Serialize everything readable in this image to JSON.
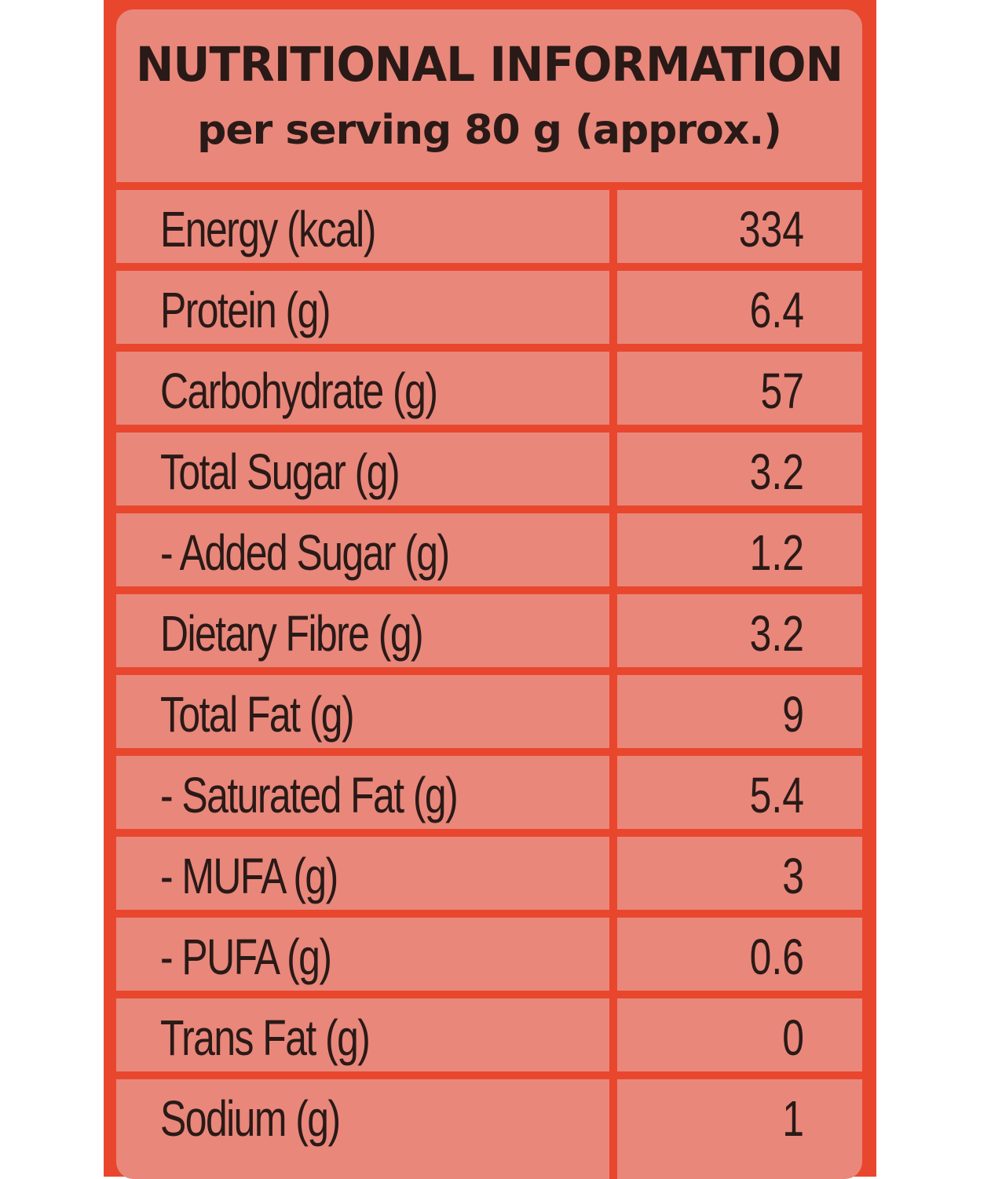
{
  "label": {
    "title": "NUTRITIONAL INFORMATION",
    "subtitle": "per serving 80 g (approx.)",
    "rows": [
      {
        "name": "Energy (kcal)",
        "value": "334"
      },
      {
        "name": "Protein (g)",
        "value": "6.4"
      },
      {
        "name": "Carbohydrate (g)",
        "value": "57"
      },
      {
        "name": "Total Sugar (g)",
        "value": "3.2"
      },
      {
        "name": "- Added Sugar (g)",
        "value": "1.2"
      },
      {
        "name": "Dietary Fibre (g)",
        "value": "3.2"
      },
      {
        "name": "Total Fat (g)",
        "value": "9"
      },
      {
        "name": "- Saturated Fat (g)",
        "value": "5.4"
      },
      {
        "name": "- MUFA (g)",
        "value": "3"
      },
      {
        "name": "- PUFA (g)",
        "value": "0.6"
      },
      {
        "name": "Trans Fat (g)",
        "value": "0"
      },
      {
        "name": "Sodium (g)",
        "value": "1"
      }
    ]
  },
  "colors": {
    "package_red": "#e8472e",
    "panel_pink": "#e9877b",
    "text_dark": "#2a1a17"
  }
}
